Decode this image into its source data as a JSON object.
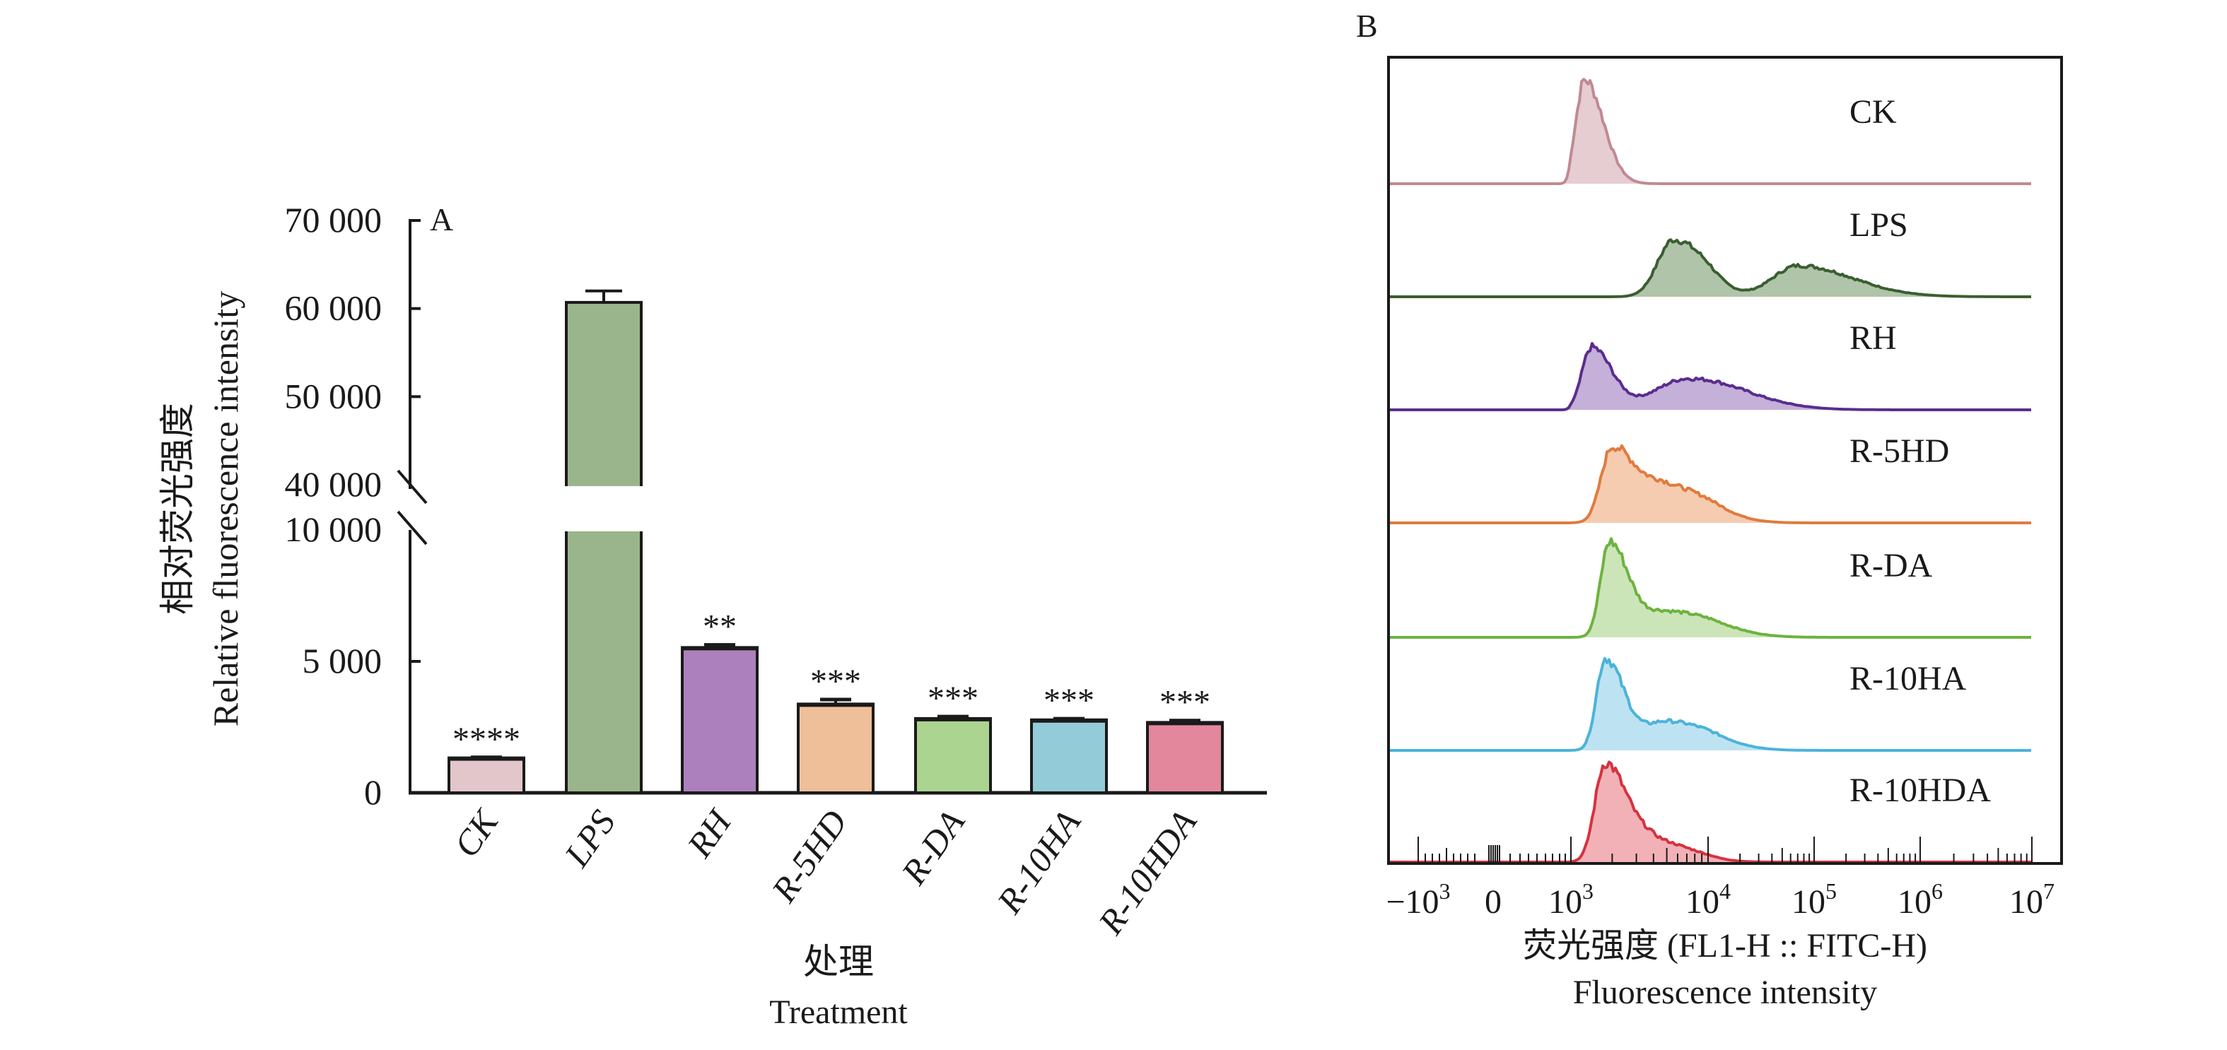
{
  "chart_data": [
    {
      "panel": "A",
      "type": "bar",
      "panel_label": "A",
      "title": "",
      "xlabel_cn": "处理",
      "xlabel": "Treatment",
      "ylabel_cn": "相对荧光强度",
      "ylabel": "Relative fluorescence intensity",
      "y_axis_break": [
        10000,
        40000
      ],
      "ylim_lower": [
        0,
        10000
      ],
      "ylim_upper": [
        40000,
        70000
      ],
      "yticks_lower": [
        {
          "value": 0,
          "label": "0"
        },
        {
          "value": 5000,
          "label": "5 000"
        },
        {
          "value": 10000,
          "label": "10 000"
        }
      ],
      "yticks_upper": [
        {
          "value": 40000,
          "label": "40 000"
        },
        {
          "value": 50000,
          "label": "50 000"
        },
        {
          "value": 60000,
          "label": "60 000"
        },
        {
          "value": 70000,
          "label": "70 000"
        }
      ],
      "categories": [
        "CK",
        "LPS",
        "RH",
        "R-5HD",
        "R-DA",
        "R-10HA",
        "R-10HDA"
      ],
      "values": [
        1300,
        60700,
        5500,
        3350,
        2800,
        2750,
        2650
      ],
      "errors": [
        50,
        1300,
        130,
        200,
        100,
        70,
        100
      ],
      "significance": [
        "****",
        "",
        "**",
        "***",
        "***",
        "***",
        "***"
      ],
      "colors": [
        "#e2c6ca",
        "#9ab58b",
        "#ac80bc",
        "#eebf99",
        "#abd491",
        "#93ccd8",
        "#e3879c"
      ]
    },
    {
      "panel": "B",
      "type": "area",
      "panel_label": "B",
      "xlabel_cn": "荧光强度 (FL1-H :: FITC-H)",
      "xlabel": "Fluorescence intensity",
      "x_scale": "biexponential",
      "xticks": [
        {
          "value": -1000,
          "base": "−10",
          "exp": "3"
        },
        {
          "value": 0,
          "base": "0",
          "exp": ""
        },
        {
          "value": 1000,
          "base": "10",
          "exp": "3"
        },
        {
          "value": 10000,
          "base": "10",
          "exp": "4"
        },
        {
          "value": 100000,
          "base": "10",
          "exp": "5"
        },
        {
          "value": 1000000,
          "base": "10",
          "exp": "6"
        },
        {
          "value": 10000000,
          "base": "10",
          "exp": "7"
        }
      ],
      "series": [
        {
          "name": "CK",
          "line": "#c08a92",
          "fill": "#e6cdd1",
          "peaks": [
            {
              "log10": 3.1,
              "height": 1.0,
              "width": 0.12
            }
          ],
          "tail": 0.05
        },
        {
          "name": "LPS",
          "line": "#3a5e30",
          "fill": "#b0c4a9",
          "peaks": [
            {
              "log10": 3.75,
              "height": 0.55,
              "width": 0.22
            },
            {
              "log10": 4.85,
              "height": 0.3,
              "width": 0.45
            }
          ],
          "tail": 0.0
        },
        {
          "name": "RH",
          "line": "#5b2d8e",
          "fill": "#c4b0d8",
          "peaks": [
            {
              "log10": 3.15,
              "height": 0.6,
              "width": 0.13
            },
            {
              "log10": 3.85,
              "height": 0.3,
              "width": 0.45
            }
          ],
          "tail": 0.0
        },
        {
          "name": "R-5HD",
          "line": "#e07b3f",
          "fill": "#f6ccb0",
          "peaks": [
            {
              "log10": 3.3,
              "height": 0.72,
              "width": 0.15
            },
            {
              "log10": 3.7,
              "height": 0.35,
              "width": 0.3
            }
          ],
          "tail": 0.0
        },
        {
          "name": "R-DA",
          "line": "#6db33f",
          "fill": "#cbe5b8",
          "peaks": [
            {
              "log10": 3.28,
              "height": 0.9,
              "width": 0.12
            },
            {
              "log10": 3.7,
              "height": 0.25,
              "width": 0.35
            }
          ],
          "tail": 0.0
        },
        {
          "name": "R-10HA",
          "line": "#4cb3d9",
          "fill": "#bde3f2",
          "peaks": [
            {
              "log10": 3.25,
              "height": 0.88,
              "width": 0.12
            },
            {
              "log10": 3.7,
              "height": 0.28,
              "width": 0.32
            }
          ],
          "tail": 0.0
        },
        {
          "name": "R-10HDA",
          "line": "#d5333f",
          "fill": "#f2b1b7",
          "peaks": [
            {
              "log10": 3.25,
              "height": 0.95,
              "width": 0.14
            },
            {
              "log10": 3.6,
              "height": 0.2,
              "width": 0.25
            }
          ],
          "tail": 0.0
        }
      ]
    }
  ]
}
